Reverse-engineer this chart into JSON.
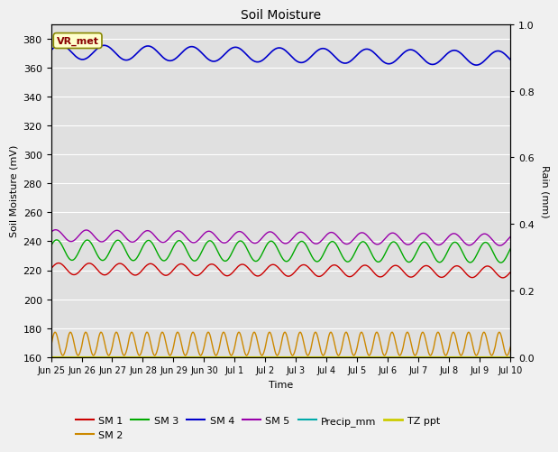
{
  "title": "Soil Moisture",
  "xlabel": "Time",
  "ylabel_left": "Soil Moisture (mV)",
  "ylabel_right": "Rain (mm)",
  "ylim_left": [
    160,
    390
  ],
  "ylim_right": [
    0.0,
    1.0
  ],
  "fig_bg_color": "#f0f0f0",
  "axes_bg_color": "#e0e0e0",
  "grid_color": "#ffffff",
  "series": {
    "SM1": {
      "color": "#cc0000",
      "label": "SM 1"
    },
    "SM2": {
      "color": "#cc8800",
      "label": "SM 2"
    },
    "SM3": {
      "color": "#00aa00",
      "label": "SM 3"
    },
    "SM4": {
      "color": "#0000cc",
      "label": "SM 4"
    },
    "SM5": {
      "color": "#9900aa",
      "label": "SM 5"
    },
    "Precip_mm": {
      "color": "#00aaaa",
      "label": "Precip_mm"
    },
    "TZ_ppt": {
      "color": "#cccc00",
      "label": "TZ ppt"
    }
  },
  "legend_box_facecolor": "#ffffcc",
  "legend_box_edgecolor": "#888800",
  "vrmet_text_color": "#880000",
  "tick_labels": [
    "Jun 25",
    "Jun 26",
    "Jun 27",
    "Jun 28",
    "Jun 29",
    "Jun 30",
    "Jul 1",
    "Jul 2",
    "Jul 3",
    "Jul 4",
    "Jul 5",
    "Jul 6",
    "Jul 7",
    "Jul 8",
    "Jul 9",
    "Jul 10"
  ],
  "yticks_left": [
    160,
    180,
    200,
    220,
    240,
    260,
    280,
    300,
    320,
    340,
    360,
    380
  ],
  "yticks_right": [
    0.0,
    0.2,
    0.4,
    0.6,
    0.8,
    1.0
  ],
  "n_points": 600
}
